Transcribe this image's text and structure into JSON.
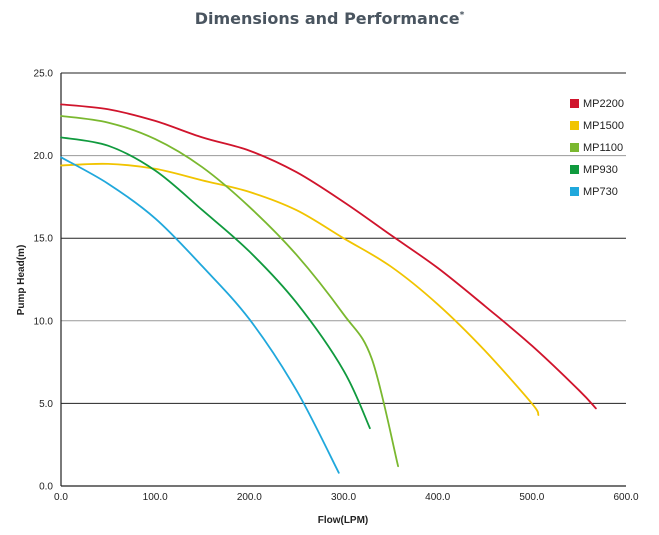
{
  "chart_data": {
    "type": "line",
    "title": "Dimensions and Performance",
    "title_mark": "*",
    "xlabel": "Flow(LPM)",
    "ylabel": "Pump Head(m)",
    "xlim": [
      0,
      600
    ],
    "ylim": [
      0,
      25
    ],
    "x_ticks": [
      "0.0",
      "100.0",
      "200.0",
      "300.0",
      "400.0",
      "500.0",
      "600.0"
    ],
    "y_ticks": [
      "0.0",
      "5.0",
      "10.0",
      "15.0",
      "20.0",
      "25.0"
    ],
    "grid": "horizontal",
    "legend_position": "right",
    "series": [
      {
        "name": "MP2200",
        "color": "#d0142c",
        "points": [
          [
            0,
            23.1
          ],
          [
            50,
            22.8
          ],
          [
            100,
            22.1
          ],
          [
            150,
            21.1
          ],
          [
            200,
            20.3
          ],
          [
            250,
            19.0
          ],
          [
            300,
            17.2
          ],
          [
            350,
            15.2
          ],
          [
            400,
            13.2
          ],
          [
            450,
            10.9
          ],
          [
            500,
            8.5
          ],
          [
            550,
            5.8
          ],
          [
            568,
            4.7
          ]
        ]
      },
      {
        "name": "MP1500",
        "color": "#f1c400",
        "points": [
          [
            0,
            19.4
          ],
          [
            50,
            19.5
          ],
          [
            100,
            19.2
          ],
          [
            150,
            18.5
          ],
          [
            200,
            17.8
          ],
          [
            250,
            16.7
          ],
          [
            300,
            15.0
          ],
          [
            350,
            13.3
          ],
          [
            400,
            11.0
          ],
          [
            450,
            8.2
          ],
          [
            500,
            5.0
          ],
          [
            507,
            4.3
          ]
        ]
      },
      {
        "name": "MP1100",
        "color": "#7ab82f",
        "points": [
          [
            0,
            22.4
          ],
          [
            50,
            22.0
          ],
          [
            100,
            21.0
          ],
          [
            150,
            19.3
          ],
          [
            200,
            16.9
          ],
          [
            250,
            14.0
          ],
          [
            300,
            10.4
          ],
          [
            330,
            7.7
          ],
          [
            358,
            1.2
          ]
        ]
      },
      {
        "name": "MP930",
        "color": "#109a3e",
        "points": [
          [
            0,
            21.1
          ],
          [
            50,
            20.6
          ],
          [
            100,
            19.1
          ],
          [
            150,
            16.7
          ],
          [
            200,
            14.2
          ],
          [
            250,
            11.1
          ],
          [
            300,
            7.0
          ],
          [
            328,
            3.5
          ]
        ]
      },
      {
        "name": "MP730",
        "color": "#20a8dc",
        "points": [
          [
            0,
            19.9
          ],
          [
            50,
            18.3
          ],
          [
            100,
            16.2
          ],
          [
            150,
            13.3
          ],
          [
            200,
            10.1
          ],
          [
            250,
            5.8
          ],
          [
            295,
            0.8
          ]
        ]
      }
    ]
  }
}
